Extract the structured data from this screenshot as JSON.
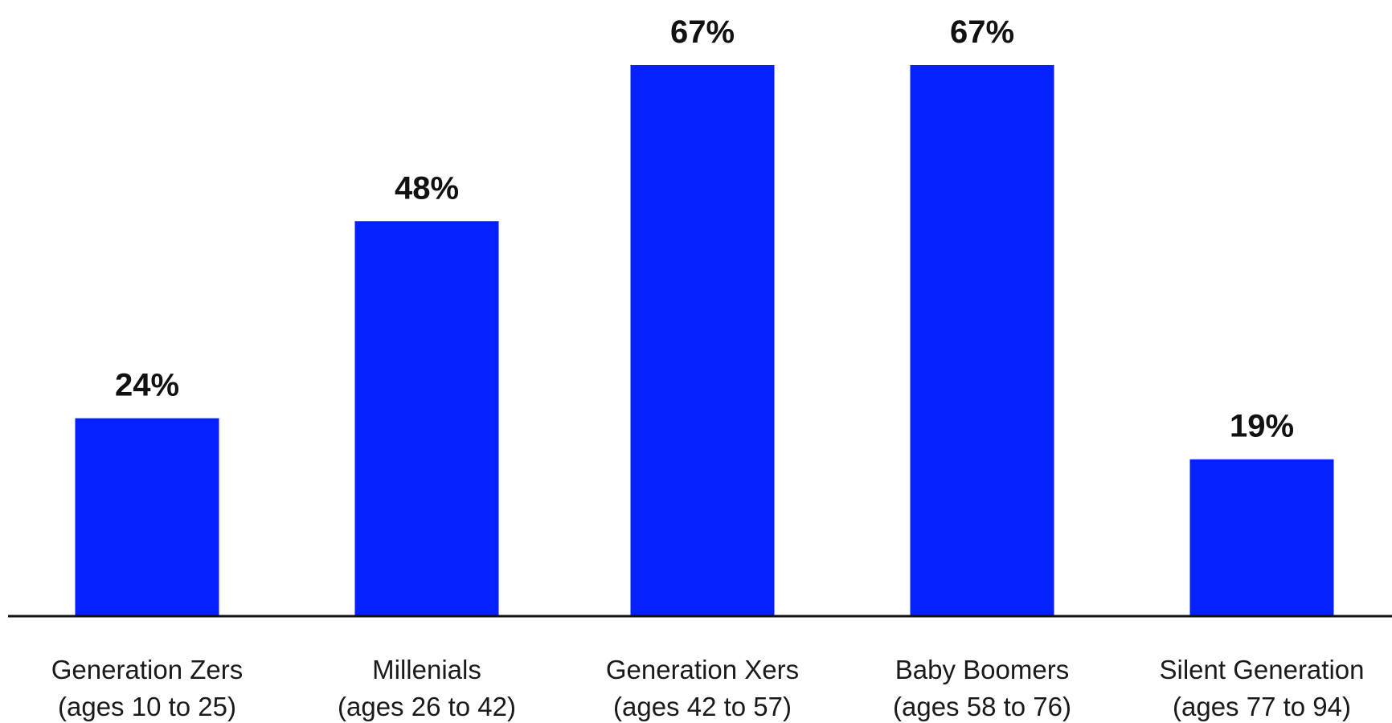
{
  "chart_data": {
    "type": "bar",
    "title": "",
    "xlabel": "",
    "ylabel": "",
    "ylim": [
      0,
      67
    ],
    "grid": false,
    "legend": "none",
    "bar_color": "#0521FF",
    "axis_color": "#111111",
    "categories": [
      {
        "line1": "Generation Zers",
        "line2": "(ages 10 to 25)"
      },
      {
        "line1": "Millenials",
        "line2": "(ages 26 to 42)"
      },
      {
        "line1": "Generation Xers",
        "line2": "(ages 42 to 57)"
      },
      {
        "line1": "Baby Boomers",
        "line2": "(ages 58 to 76)"
      },
      {
        "line1": "Silent Generation",
        "line2": "(ages 77 to 94)"
      }
    ],
    "values": [
      24,
      48,
      67,
      67,
      19
    ],
    "value_labels": [
      "24%",
      "48%",
      "67%",
      "67%",
      "19%"
    ]
  }
}
